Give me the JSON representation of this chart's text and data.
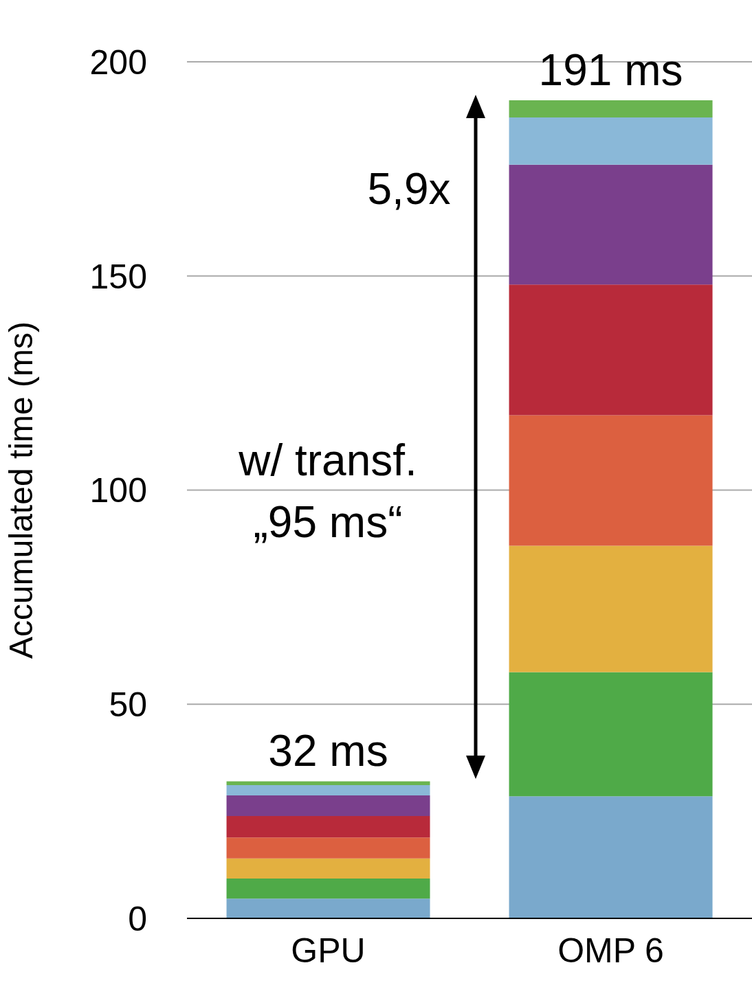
{
  "chart_data": {
    "type": "bar",
    "stacked": true,
    "ylabel": "Accumulated time (ms)",
    "categories": [
      "GPU",
      "OMP 6"
    ],
    "ylim": [
      0,
      200
    ],
    "yticks": [
      0,
      50,
      100,
      150,
      200
    ],
    "grid": "y",
    "legend": false,
    "series": [
      {
        "color": "#7aa9cc",
        "values": [
          4.6,
          28.5
        ]
      },
      {
        "color": "#4faa48",
        "values": [
          4.7,
          29
        ]
      },
      {
        "color": "#e3b040",
        "values": [
          4.7,
          29.5
        ]
      },
      {
        "color": "#dc6040",
        "values": [
          4.9,
          30.5
        ]
      },
      {
        "color": "#b82a3a",
        "values": [
          5,
          30.5
        ]
      },
      {
        "color": "#7a3f8c",
        "values": [
          4.8,
          28
        ]
      },
      {
        "color": "#8ab8d8",
        "values": [
          2.4,
          11
        ]
      },
      {
        "color": "#6ab450",
        "values": [
          0.9,
          4
        ]
      }
    ],
    "annotations": [
      {
        "text": "32 ms",
        "x": "GPU",
        "y": 32
      },
      {
        "text": "191 ms",
        "x": "OMP 6",
        "y": 191
      },
      "5,9x",
      "w/ transf.",
      "„95 ms“"
    ]
  }
}
